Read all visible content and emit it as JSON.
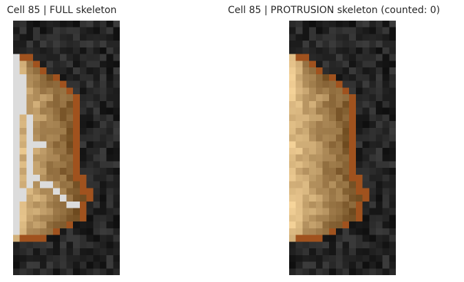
{
  "panels": [
    {
      "title": "Cell 85 | FULL skeleton",
      "skeleton_color": "#dcdcdc"
    },
    {
      "title": "Cell 85 | PROTRUSION skeleton (counted: 0)",
      "skeleton_color": "#dcdcdc"
    }
  ],
  "colors": {
    "background_dark": "#111111",
    "cell_outline": "#a0521e",
    "cell_fill_light": "#f6d49a",
    "cell_fill_dark": "#6e4a1f"
  }
}
